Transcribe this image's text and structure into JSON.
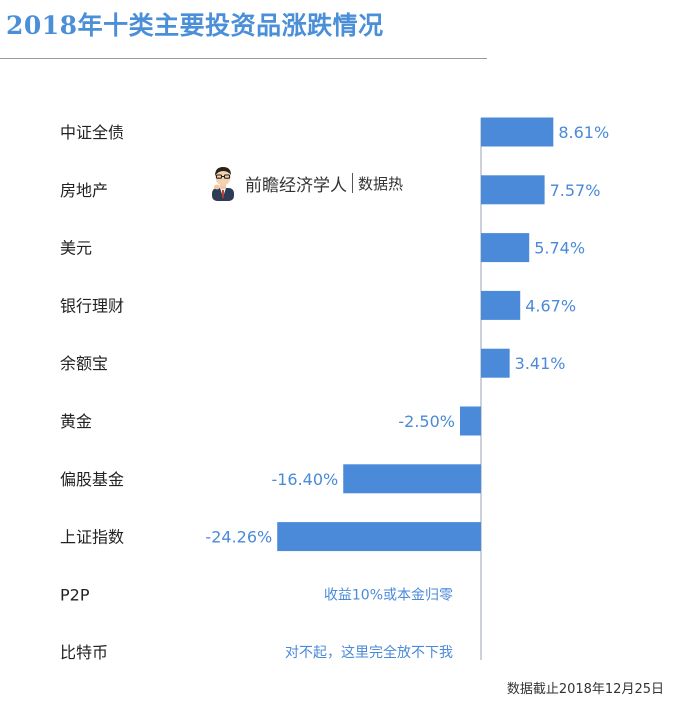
{
  "title": "2018年十类主要投资品涨跌情况",
  "brand": {
    "name": "前瞻经济学人",
    "tag": "数据热"
  },
  "footer": "数据截止2018年12月25日",
  "colors": {
    "bar": "#4a8ad8",
    "label": "#4a8ad8",
    "category": "#222222",
    "axis": "#9aa6b2"
  },
  "chart_data": {
    "type": "bar",
    "orientation": "horizontal",
    "categories": [
      "中证全债",
      "房地产",
      "美元",
      "银行理财",
      "余额宝",
      "黄金",
      "偏股基金",
      "上证指数",
      "P2P",
      "比特币"
    ],
    "values": [
      8.61,
      7.57,
      5.74,
      4.67,
      3.41,
      -2.5,
      -16.4,
      -24.26,
      null,
      null
    ],
    "value_labels": [
      "8.61%",
      "7.57%",
      "5.74%",
      "4.67%",
      "3.41%",
      "-2.50%",
      "-16.40%",
      "-24.26%",
      "",
      ""
    ],
    "notes": [
      "",
      "",
      "",
      "",
      "",
      "",
      "",
      "",
      "收益10%或本金归零",
      "对不起，这里完全放不下我"
    ],
    "title": "",
    "xlabel": "",
    "ylabel": ""
  }
}
